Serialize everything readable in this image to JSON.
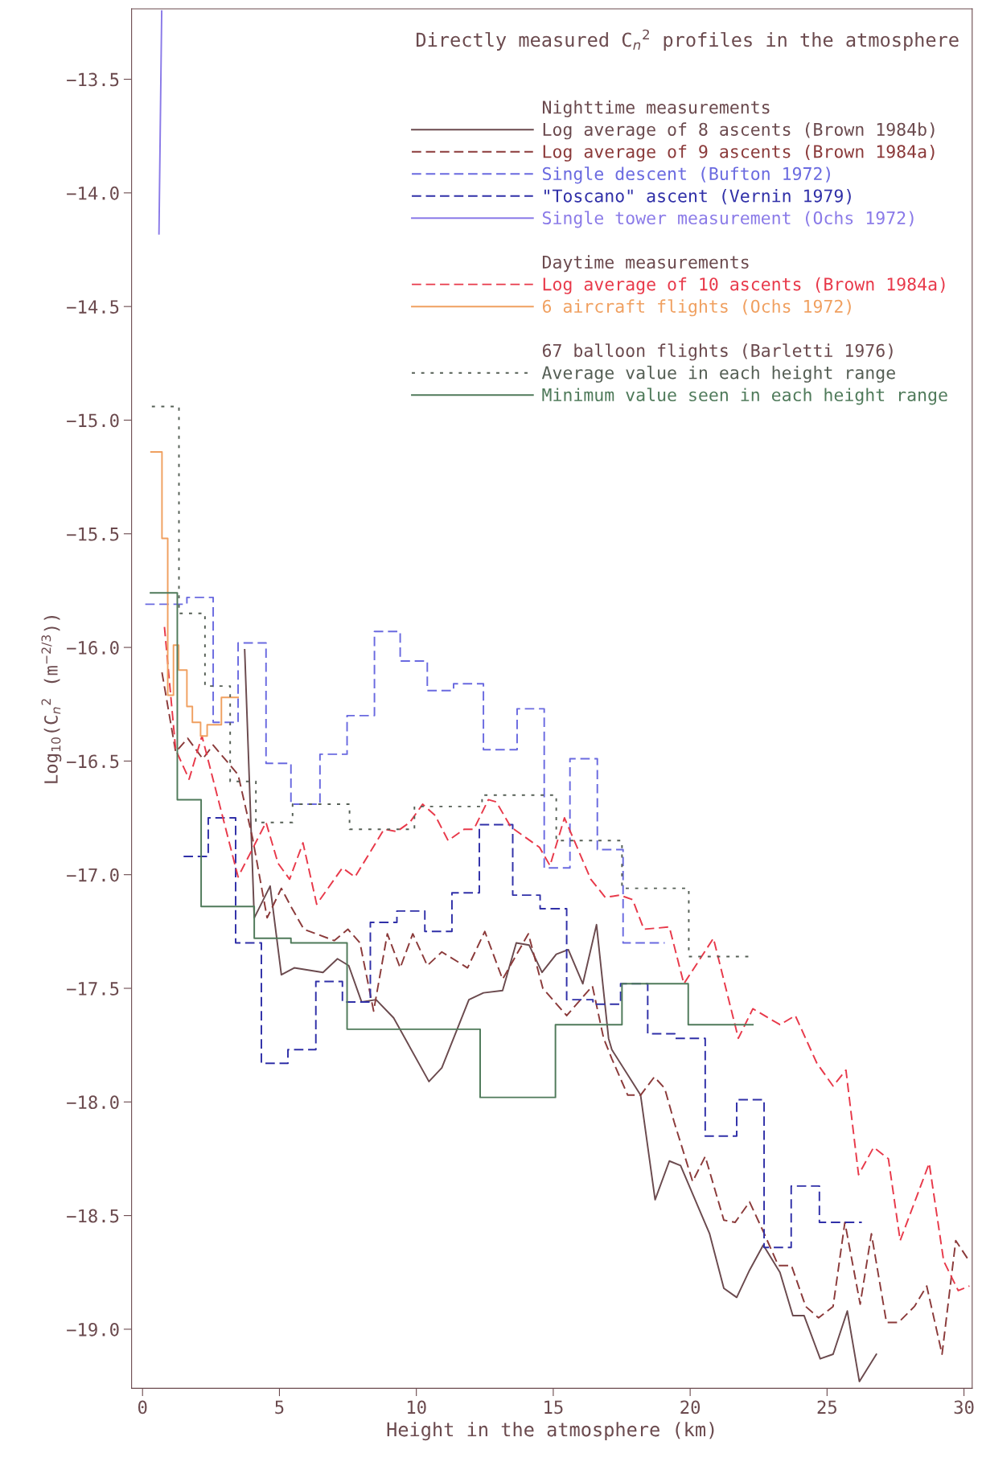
{
  "chart_data": {
    "type": "line",
    "title": "Directly measured C$_{n}$$^{2}$ profiles in the atmosphere",
    "xlabel": "Height in the atmosphere (km)",
    "ylabel": "Log$_{10}$(C$_{n}$$^{2}$ (m$^{−2/3}$))",
    "annotations": [
      "Nighttime measurements",
      "Daytime measurements",
      "67 balloon flights (Barletti 1976)"
    ],
    "xlim": [
      -0.4,
      30.3
    ],
    "xticks": [
      0,
      5,
      10,
      15,
      20,
      25,
      30
    ],
    "ylim": [
      -19.26,
      -13.19
    ],
    "yticks": [
      {
        "value": -13.5,
        "label": "−13.5"
      },
      {
        "value": -14.0,
        "label": "−14.0"
      },
      {
        "value": -14.5,
        "label": "−14.5"
      },
      {
        "value": -15.0,
        "label": "−15.0"
      },
      {
        "value": -15.5,
        "label": "−15.5"
      },
      {
        "value": -16.0,
        "label": "−16.0"
      },
      {
        "value": -16.5,
        "label": "−16.5"
      },
      {
        "value": -17.0,
        "label": "−17.0"
      },
      {
        "value": -17.5,
        "label": "−17.5"
      },
      {
        "value": -18.0,
        "label": "−18.0"
      },
      {
        "value": -18.5,
        "label": "−18.5"
      },
      {
        "value": -19.0,
        "label": "−19.0"
      }
    ],
    "grid": false,
    "legend": "top right",
    "series": [
      {
        "name": "Log average of 8 ascents (Brown 1984b)",
        "line_style": "solid",
        "color": "#6b4a4e",
        "x": [
          3.73,
          4.08,
          4.66,
          5.07,
          5.54,
          6.59,
          7.12,
          7.53,
          8.0,
          8.53,
          9.17,
          10.46,
          10.93,
          11.92,
          12.45,
          13.15,
          13.65,
          14.12,
          14.59,
          15.11,
          15.55,
          16.08,
          16.58,
          17.02,
          17.14,
          18.19,
          18.72,
          19.24,
          19.65,
          20.71,
          21.23,
          21.7,
          22.17,
          22.67,
          23.28,
          23.75,
          24.16,
          24.75,
          25.22,
          25.74,
          26.18,
          26.8
        ],
        "values": [
          -16.01,
          -17.19,
          -17.05,
          -17.44,
          -17.41,
          -17.43,
          -17.37,
          -17.4,
          -17.56,
          -17.55,
          -17.63,
          -17.91,
          -17.85,
          -17.55,
          -17.52,
          -17.51,
          -17.3,
          -17.31,
          -17.43,
          -17.35,
          -17.33,
          -17.48,
          -17.22,
          -17.72,
          -17.77,
          -17.97,
          -18.43,
          -18.26,
          -18.28,
          -18.58,
          -18.82,
          -18.86,
          -18.74,
          -18.63,
          -18.75,
          -18.94,
          -18.94,
          -19.13,
          -19.11,
          -18.92,
          -19.23,
          -19.11
        ]
      },
      {
        "name": "Log average of 9 ascents (Brown 1984a)",
        "line_style": "dashed",
        "color": "#8b3a3a",
        "x": [
          0.71,
          1.21,
          1.65,
          2.2,
          2.58,
          3.49,
          4.02,
          4.55,
          5.07,
          5.42,
          5.89,
          7.0,
          7.5,
          7.94,
          8.44,
          8.94,
          9.41,
          9.87,
          10.4,
          10.93,
          11.87,
          12.5,
          13.15,
          14.09,
          14.62,
          15.49,
          16.43,
          16.84,
          17.14,
          17.72,
          18.19,
          18.69,
          19.07,
          19.42,
          20.09,
          20.55,
          21.23,
          21.64,
          22.17,
          22.67,
          23.22,
          23.7,
          24.22,
          24.69,
          25.22,
          25.65,
          26.21,
          26.62,
          27.17,
          27.61,
          28.19,
          28.64,
          29.2,
          29.7,
          30.19
        ],
        "values": [
          -16.11,
          -16.46,
          -16.4,
          -16.49,
          -16.43,
          -16.56,
          -16.84,
          -17.19,
          -17.06,
          -17.14,
          -17.24,
          -17.29,
          -17.24,
          -17.3,
          -17.6,
          -17.26,
          -17.41,
          -17.26,
          -17.4,
          -17.34,
          -17.41,
          -17.25,
          -17.46,
          -17.26,
          -17.5,
          -17.62,
          -17.49,
          -17.72,
          -17.81,
          -17.97,
          -17.97,
          -17.89,
          -17.94,
          -18.09,
          -18.35,
          -18.24,
          -18.52,
          -18.53,
          -18.44,
          -18.57,
          -18.72,
          -18.72,
          -18.9,
          -18.95,
          -18.9,
          -18.53,
          -18.89,
          -18.58,
          -18.97,
          -18.97,
          -18.9,
          -18.81,
          -19.11,
          -18.61,
          -18.7
        ]
      },
      {
        "name": "Single descent (Bufton 1972)",
        "type": "step",
        "line_style": "dashed",
        "color": "#6a6ae0",
        "x": [
          0.1,
          1.62,
          2.58,
          3.49,
          4.51,
          5.42,
          6.48,
          7.47,
          8.47,
          9.41,
          10.4,
          11.36,
          12.45,
          13.68,
          14.67,
          15.61,
          16.61,
          17.55,
          19.07
        ],
        "values": [
          -15.81,
          -15.78,
          -16.33,
          -15.98,
          -16.51,
          -16.69,
          -16.47,
          -16.3,
          -15.93,
          -16.06,
          -16.19,
          -16.16,
          -16.45,
          -16.27,
          -16.97,
          -16.49,
          -16.89,
          -17.3,
          -17.3
        ]
      },
      {
        "name": "\"Toscano\" ascent (Vernin 1979)",
        "type": "step",
        "line_style": "dashed",
        "color": "#3030a8",
        "x": [
          1.5,
          2.4,
          3.4,
          4.34,
          5.31,
          6.33,
          7.3,
          8.32,
          9.29,
          10.31,
          11.3,
          12.3,
          13.52,
          14.52,
          15.49,
          16.45,
          17.46,
          18.45,
          19.44,
          20.55,
          21.7,
          22.7,
          23.69,
          24.72,
          26.27
        ],
        "values": [
          -16.92,
          -16.75,
          -17.3,
          -17.83,
          -17.77,
          -17.47,
          -17.56,
          -17.21,
          -17.16,
          -17.25,
          -17.08,
          -16.78,
          -17.09,
          -17.15,
          -17.55,
          -17.57,
          -17.48,
          -17.7,
          -17.72,
          -18.15,
          -17.99,
          -18.64,
          -18.37,
          -18.53,
          -18.53
        ]
      },
      {
        "name": "Single tower measurement (Ochs 1972)",
        "line_style": "solid",
        "color": "#8a7ae8",
        "x": [
          0.7,
          0.6
        ],
        "values": [
          -13.2,
          -14.18
        ]
      },
      {
        "name": "Log average of 10 ascents (Brown 1984a)",
        "line_style": "dashed",
        "color": "#e8394a",
        "x": [
          0.8,
          1.21,
          1.7,
          2.17,
          3.49,
          4.51,
          4.95,
          5.37,
          5.86,
          6.36,
          7.3,
          7.76,
          8.82,
          9.29,
          9.76,
          10.23,
          10.69,
          11.16,
          11.75,
          12.1,
          12.63,
          12.92,
          13.45,
          14.5,
          14.88,
          15.41,
          16.37,
          16.9,
          17.43,
          17.9,
          18.31,
          19.24,
          19.77,
          20.85,
          21.76,
          22.29,
          23.28,
          23.84,
          24.63,
          25.22,
          25.69,
          26.15,
          26.7,
          27.24,
          27.67,
          28.73,
          29.26,
          29.79,
          30.2
        ],
        "values": [
          -15.91,
          -16.45,
          -16.58,
          -16.39,
          -17.01,
          -16.77,
          -16.95,
          -17.02,
          -16.86,
          -17.13,
          -16.97,
          -17.01,
          -16.8,
          -16.81,
          -16.77,
          -16.69,
          -16.74,
          -16.85,
          -16.8,
          -16.8,
          -16.67,
          -16.68,
          -16.79,
          -16.88,
          -16.96,
          -16.75,
          -17.02,
          -17.1,
          -17.09,
          -17.11,
          -17.24,
          -17.23,
          -17.48,
          -17.28,
          -17.72,
          -17.59,
          -17.66,
          -17.62,
          -17.83,
          -17.93,
          -17.86,
          -18.32,
          -18.2,
          -18.25,
          -18.61,
          -18.27,
          -18.7,
          -18.83,
          -18.81
        ]
      },
      {
        "name": "6 aircraft flights (Ochs 1972)",
        "type": "step",
        "line_style": "solid",
        "color": "#f0a060",
        "x": [
          0.31,
          0.71,
          0.92,
          1.13,
          1.32,
          1.62,
          1.82,
          2.12,
          2.36,
          2.61,
          2.88,
          3.49
        ],
        "values": [
          -15.14,
          -15.52,
          -16.21,
          -15.99,
          -16.1,
          -16.26,
          -16.33,
          -16.39,
          -16.34,
          -16.34,
          -16.22,
          -16.22
        ]
      },
      {
        "name": "Average value in each height range",
        "type": "step",
        "line_style": "dotted",
        "color": "#555f55",
        "x": [
          0.34,
          1.33,
          2.28,
          3.2,
          4.14,
          5.48,
          7.56,
          9.93,
          12.4,
          15.11,
          17.51,
          19.95,
          22.29
        ],
        "values": [
          -14.94,
          -15.85,
          -16.17,
          -16.59,
          -16.77,
          -16.69,
          -16.8,
          -16.7,
          -16.65,
          -16.85,
          -17.06,
          -17.36,
          -17.36
        ]
      },
      {
        "name": "Minimum value seen in each height range",
        "type": "step",
        "line_style": "solid",
        "color": "#4f7a5a",
        "x": [
          0.29,
          1.27,
          2.14,
          4.08,
          5.42,
          7.47,
          12.33,
          15.08,
          17.51,
          19.93,
          22.29
        ],
        "values": [
          -15.76,
          -16.67,
          -17.14,
          -17.28,
          -17.3,
          -17.68,
          -17.98,
          -17.66,
          -17.48,
          -17.66,
          -17.66
        ]
      }
    ]
  }
}
